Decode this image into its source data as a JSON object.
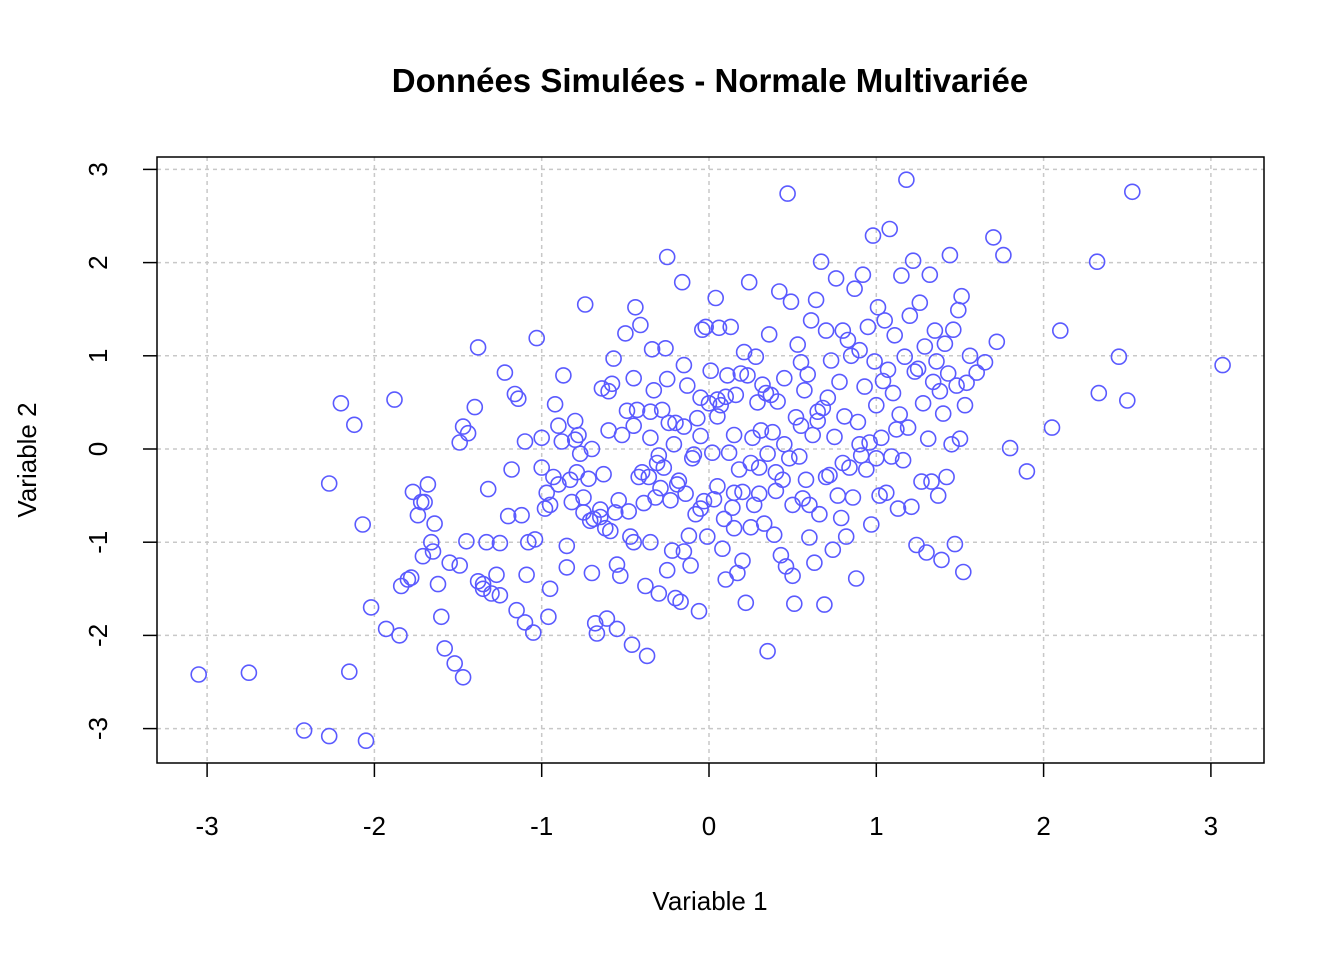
{
  "chart_data": {
    "type": "scatter",
    "title": "Données Simulées - Normale Multivariée",
    "xlabel": "Variable 1",
    "ylabel": "Variable 2",
    "xlim": [
      -3.3,
      3.3
    ],
    "ylim": [
      -3.35,
      3.15
    ],
    "xticks": [
      -3,
      -2,
      -1,
      0,
      1,
      2,
      3
    ],
    "yticks": [
      -3,
      -2,
      -1,
      0,
      1,
      2,
      3
    ],
    "xtick_labels": [
      "-3",
      "-2",
      "-1",
      "0",
      "1",
      "2",
      "3"
    ],
    "ytick_labels": [
      "-3",
      "-2",
      "-1",
      "0",
      "1",
      "2",
      "3"
    ],
    "grid": true,
    "marker": "open-circle",
    "colors": {
      "points": "#5a5aff",
      "grid": "#c8c8c8",
      "axis": "#000000"
    },
    "points": [
      [
        -3.05,
        -2.42
      ],
      [
        -2.75,
        -2.4
      ],
      [
        -2.42,
        -3.02
      ],
      [
        -2.27,
        -3.08
      ],
      [
        -2.05,
        -3.13
      ],
      [
        -2.15,
        -2.39
      ],
      [
        -2.27,
        -0.37
      ],
      [
        -2.2,
        0.49
      ],
      [
        -2.12,
        0.26
      ],
      [
        -2.07,
        -0.81
      ],
      [
        -2.02,
        -1.7
      ],
      [
        -1.93,
        -1.93
      ],
      [
        -1.88,
        0.53
      ],
      [
        -1.85,
        -2.0
      ],
      [
        -1.84,
        -1.47
      ],
      [
        -1.78,
        -1.38
      ],
      [
        -1.77,
        -0.46
      ],
      [
        -1.74,
        -0.71
      ],
      [
        -1.72,
        -0.57
      ],
      [
        -1.71,
        -1.15
      ],
      [
        -1.7,
        -0.57
      ],
      [
        -1.68,
        -0.38
      ],
      [
        -1.66,
        -1.0
      ],
      [
        -1.64,
        -0.8
      ],
      [
        -1.62,
        -1.45
      ],
      [
        -1.6,
        -1.8
      ],
      [
        -1.58,
        -2.14
      ],
      [
        -1.55,
        -1.22
      ],
      [
        -1.52,
        -2.3
      ],
      [
        -1.49,
        -1.25
      ],
      [
        -1.47,
        -2.45
      ],
      [
        -1.49,
        0.07
      ],
      [
        -1.47,
        0.24
      ],
      [
        -1.44,
        0.17
      ],
      [
        -1.4,
        0.45
      ],
      [
        -1.38,
        1.09
      ],
      [
        -1.38,
        -1.42
      ],
      [
        -1.35,
        -1.5
      ],
      [
        -1.33,
        -1.0
      ],
      [
        -1.32,
        -0.43
      ],
      [
        -1.3,
        -1.55
      ],
      [
        -1.27,
        -1.35
      ],
      [
        -1.25,
        -1.01
      ],
      [
        -1.22,
        0.82
      ],
      [
        -1.2,
        -0.72
      ],
      [
        -1.18,
        -0.22
      ],
      [
        -1.16,
        0.59
      ],
      [
        -1.14,
        0.54
      ],
      [
        -1.12,
        -0.71
      ],
      [
        -1.1,
        -1.86
      ],
      [
        -1.09,
        -1.35
      ],
      [
        -1.08,
        -1.0
      ],
      [
        -1.05,
        -1.97
      ],
      [
        -1.04,
        -0.97
      ],
      [
        -1.03,
        1.19
      ],
      [
        -1.0,
        0.12
      ],
      [
        -0.98,
        -0.64
      ],
      [
        -0.97,
        -0.47
      ],
      [
        -0.96,
        -1.8
      ],
      [
        -0.95,
        -1.5
      ],
      [
        -0.93,
        -0.3
      ],
      [
        -0.92,
        0.48
      ],
      [
        -0.9,
        -0.38
      ],
      [
        -0.88,
        0.08
      ],
      [
        -0.87,
        0.79
      ],
      [
        -0.85,
        -1.27
      ],
      [
        -0.83,
        -0.33
      ],
      [
        -0.82,
        -0.57
      ],
      [
        -0.8,
        0.1
      ],
      [
        -0.79,
        -0.25
      ],
      [
        -0.78,
        0.15
      ],
      [
        -0.77,
        -0.05
      ],
      [
        -0.75,
        -0.52
      ],
      [
        -0.74,
        1.55
      ],
      [
        -0.72,
        -0.32
      ],
      [
        -0.71,
        -0.77
      ],
      [
        -0.7,
        -1.33
      ],
      [
        -0.69,
        -0.75
      ],
      [
        -0.68,
        -1.87
      ],
      [
        -0.67,
        -1.98
      ],
      [
        -0.65,
        -0.65
      ],
      [
        -0.64,
        0.65
      ],
      [
        -0.63,
        -0.27
      ],
      [
        -0.62,
        -0.85
      ],
      [
        -0.61,
        -1.82
      ],
      [
        -0.6,
        0.62
      ],
      [
        -0.59,
        -0.88
      ],
      [
        -0.58,
        0.7
      ],
      [
        -0.57,
        0.97
      ],
      [
        -0.56,
        -0.68
      ],
      [
        -0.55,
        -1.93
      ],
      [
        -0.54,
        -0.55
      ],
      [
        -0.53,
        -1.36
      ],
      [
        -0.52,
        0.15
      ],
      [
        -0.5,
        1.24
      ],
      [
        -0.49,
        0.41
      ],
      [
        -0.48,
        -0.67
      ],
      [
        -0.47,
        -0.94
      ],
      [
        -0.46,
        -2.1
      ],
      [
        -0.45,
        0.76
      ],
      [
        -0.44,
        1.52
      ],
      [
        -0.43,
        0.42
      ],
      [
        -0.42,
        -0.3
      ],
      [
        -0.41,
        1.33
      ],
      [
        -0.4,
        -0.25
      ],
      [
        -0.39,
        -0.58
      ],
      [
        -0.38,
        -1.47
      ],
      [
        -0.37,
        -2.22
      ],
      [
        -0.36,
        -0.3
      ],
      [
        -0.35,
        0.12
      ],
      [
        -0.34,
        1.07
      ],
      [
        -0.33,
        0.63
      ],
      [
        -0.32,
        -0.52
      ],
      [
        -0.31,
        -0.15
      ],
      [
        -0.3,
        -0.07
      ],
      [
        -0.29,
        -0.42
      ],
      [
        -0.28,
        0.42
      ],
      [
        -0.27,
        -0.2
      ],
      [
        -0.26,
        1.08
      ],
      [
        -0.25,
        2.06
      ],
      [
        -0.24,
        0.28
      ],
      [
        -0.23,
        -0.55
      ],
      [
        -0.22,
        -1.09
      ],
      [
        -0.21,
        0.05
      ],
      [
        -0.2,
        0.28
      ],
      [
        -0.19,
        -0.38
      ],
      [
        -0.18,
        -0.34
      ],
      [
        -0.17,
        -1.64
      ],
      [
        -0.16,
        1.79
      ],
      [
        -0.15,
        0.24
      ],
      [
        -0.14,
        -0.48
      ],
      [
        -0.13,
        0.68
      ],
      [
        -0.12,
        -0.93
      ],
      [
        -0.11,
        -1.25
      ],
      [
        -0.1,
        -0.1
      ],
      [
        -0.09,
        -0.06
      ],
      [
        -0.08,
        -0.7
      ],
      [
        -0.07,
        0.33
      ],
      [
        -0.06,
        -1.74
      ],
      [
        -0.05,
        0.14
      ],
      [
        -0.04,
        1.28
      ],
      [
        -0.03,
        -0.56
      ],
      [
        -0.02,
        1.31
      ],
      [
        -0.01,
        -0.94
      ],
      [
        0.0,
        0.49
      ],
      [
        0.01,
        0.84
      ],
      [
        0.02,
        -0.04
      ],
      [
        0.03,
        -0.54
      ],
      [
        0.04,
        1.62
      ],
      [
        0.05,
        0.53
      ],
      [
        0.06,
        1.3
      ],
      [
        0.07,
        0.47
      ],
      [
        0.08,
        -1.07
      ],
      [
        0.09,
        -0.75
      ],
      [
        0.1,
        0.56
      ],
      [
        0.11,
        0.79
      ],
      [
        0.12,
        -0.04
      ],
      [
        0.13,
        1.31
      ],
      [
        0.14,
        -0.63
      ],
      [
        0.15,
        -0.47
      ],
      [
        0.16,
        0.58
      ],
      [
        0.17,
        -1.33
      ],
      [
        0.18,
        -0.22
      ],
      [
        0.19,
        0.81
      ],
      [
        0.2,
        -0.46
      ],
      [
        0.21,
        1.04
      ],
      [
        0.22,
        -1.65
      ],
      [
        0.23,
        0.79
      ],
      [
        0.24,
        1.79
      ],
      [
        0.25,
        -0.84
      ],
      [
        0.26,
        0.12
      ],
      [
        0.27,
        -0.6
      ],
      [
        0.28,
        0.99
      ],
      [
        0.29,
        0.5
      ],
      [
        0.3,
        -0.48
      ],
      [
        0.31,
        0.2
      ],
      [
        0.32,
        0.69
      ],
      [
        0.33,
        -0.8
      ],
      [
        0.34,
        0.6
      ],
      [
        0.35,
        -2.17
      ],
      [
        0.36,
        1.23
      ],
      [
        0.37,
        0.58
      ],
      [
        0.38,
        0.18
      ],
      [
        0.39,
        -0.92
      ],
      [
        0.4,
        -0.45
      ],
      [
        0.41,
        0.51
      ],
      [
        0.42,
        1.69
      ],
      [
        0.43,
        -1.14
      ],
      [
        0.44,
        -0.33
      ],
      [
        0.45,
        0.76
      ],
      [
        0.46,
        -1.26
      ],
      [
        0.47,
        2.74
      ],
      [
        0.48,
        -0.1
      ],
      [
        0.49,
        1.58
      ],
      [
        0.5,
        -1.36
      ],
      [
        0.51,
        -1.66
      ],
      [
        0.52,
        0.34
      ],
      [
        0.53,
        1.12
      ],
      [
        0.54,
        -0.08
      ],
      [
        0.55,
        0.93
      ],
      [
        0.56,
        -0.53
      ],
      [
        0.57,
        0.63
      ],
      [
        0.58,
        -0.33
      ],
      [
        0.59,
        0.8
      ],
      [
        0.6,
        -0.6
      ],
      [
        0.61,
        1.38
      ],
      [
        0.62,
        0.15
      ],
      [
        0.63,
        -1.22
      ],
      [
        0.64,
        1.6
      ],
      [
        0.65,
        0.4
      ],
      [
        0.66,
        -0.7
      ],
      [
        0.67,
        2.01
      ],
      [
        0.68,
        0.44
      ],
      [
        0.69,
        -1.67
      ],
      [
        0.7,
        1.27
      ],
      [
        0.71,
        0.55
      ],
      [
        0.72,
        -0.28
      ],
      [
        0.73,
        0.95
      ],
      [
        0.74,
        -1.08
      ],
      [
        0.75,
        0.13
      ],
      [
        0.76,
        1.83
      ],
      [
        0.77,
        -0.5
      ],
      [
        0.78,
        0.72
      ],
      [
        0.79,
        -0.74
      ],
      [
        0.8,
        1.27
      ],
      [
        0.81,
        0.35
      ],
      [
        0.82,
        -0.94
      ],
      [
        0.83,
        1.17
      ],
      [
        0.84,
        -0.2
      ],
      [
        0.85,
        1.0
      ],
      [
        0.86,
        -0.52
      ],
      [
        0.87,
        1.72
      ],
      [
        0.88,
        -1.39
      ],
      [
        0.89,
        0.29
      ],
      [
        0.9,
        1.06
      ],
      [
        0.91,
        -0.07
      ],
      [
        0.92,
        1.87
      ],
      [
        0.93,
        0.67
      ],
      [
        0.94,
        -0.22
      ],
      [
        0.95,
        1.31
      ],
      [
        0.96,
        0.07
      ],
      [
        0.97,
        -0.81
      ],
      [
        0.98,
        2.29
      ],
      [
        0.99,
        0.94
      ],
      [
        1.0,
        0.47
      ],
      [
        1.01,
        1.52
      ],
      [
        1.02,
        -0.5
      ],
      [
        1.03,
        0.12
      ],
      [
        1.04,
        0.73
      ],
      [
        1.05,
        1.38
      ],
      [
        1.06,
        -0.47
      ],
      [
        1.07,
        0.85
      ],
      [
        1.08,
        2.36
      ],
      [
        1.09,
        -0.08
      ],
      [
        1.1,
        0.6
      ],
      [
        1.11,
        1.22
      ],
      [
        1.12,
        0.21
      ],
      [
        1.13,
        -0.64
      ],
      [
        1.14,
        0.37
      ],
      [
        1.15,
        1.86
      ],
      [
        1.16,
        -0.12
      ],
      [
        1.17,
        0.99
      ],
      [
        1.18,
        2.89
      ],
      [
        1.19,
        0.23
      ],
      [
        1.2,
        1.43
      ],
      [
        1.21,
        -0.62
      ],
      [
        1.22,
        2.02
      ],
      [
        1.23,
        0.83
      ],
      [
        1.24,
        -1.03
      ],
      [
        1.25,
        0.86
      ],
      [
        1.26,
        1.57
      ],
      [
        1.27,
        -0.35
      ],
      [
        1.28,
        0.49
      ],
      [
        1.29,
        1.1
      ],
      [
        1.3,
        -1.11
      ],
      [
        1.31,
        0.11
      ],
      [
        1.32,
        1.87
      ],
      [
        1.33,
        -0.35
      ],
      [
        1.34,
        0.72
      ],
      [
        1.35,
        1.27
      ],
      [
        1.36,
        0.94
      ],
      [
        1.37,
        -0.5
      ],
      [
        1.38,
        0.62
      ],
      [
        1.39,
        -1.19
      ],
      [
        1.4,
        0.38
      ],
      [
        1.41,
        1.13
      ],
      [
        1.42,
        -0.3
      ],
      [
        1.43,
        0.81
      ],
      [
        1.44,
        2.08
      ],
      [
        1.45,
        0.05
      ],
      [
        1.46,
        1.28
      ],
      [
        1.47,
        -1.02
      ],
      [
        1.48,
        0.68
      ],
      [
        1.49,
        1.49
      ],
      [
        1.5,
        0.11
      ],
      [
        1.51,
        1.64
      ],
      [
        1.52,
        -1.32
      ],
      [
        1.53,
        0.47
      ],
      [
        1.54,
        0.71
      ],
      [
        1.56,
        1.0
      ],
      [
        1.6,
        0.82
      ],
      [
        1.65,
        0.93
      ],
      [
        1.7,
        2.27
      ],
      [
        1.72,
        1.15
      ],
      [
        1.76,
        2.08
      ],
      [
        1.8,
        0.01
      ],
      [
        1.9,
        -0.24
      ],
      [
        2.05,
        0.23
      ],
      [
        2.1,
        1.27
      ],
      [
        2.32,
        2.01
      ],
      [
        2.33,
        0.6
      ],
      [
        2.45,
        0.99
      ],
      [
        2.5,
        0.52
      ],
      [
        2.53,
        2.76
      ],
      [
        3.07,
        0.9
      ],
      [
        -1.8,
        -1.4
      ],
      [
        -1.65,
        -1.1
      ],
      [
        -1.45,
        -0.99
      ],
      [
        -1.35,
        -1.45
      ],
      [
        -1.25,
        -1.57
      ],
      [
        -1.15,
        -1.73
      ],
      [
        -0.95,
        -0.6
      ],
      [
        -0.85,
        -1.04
      ],
      [
        -0.75,
        -0.68
      ],
      [
        -0.65,
        -0.73
      ],
      [
        -0.55,
        -1.24
      ],
      [
        -0.45,
        -1.0
      ],
      [
        -0.35,
        -1.0
      ],
      [
        -0.25,
        -1.3
      ],
      [
        -0.15,
        -1.1
      ],
      [
        -0.05,
        -0.64
      ],
      [
        0.05,
        -0.4
      ],
      [
        0.15,
        -0.85
      ],
      [
        0.25,
        -0.15
      ],
      [
        0.35,
        -0.05
      ],
      [
        0.45,
        0.05
      ],
      [
        0.55,
        0.25
      ],
      [
        0.65,
        0.3
      ],
      [
        -0.45,
        0.25
      ],
      [
        -0.35,
        0.4
      ],
      [
        -0.25,
        0.75
      ],
      [
        -0.15,
        0.9
      ],
      [
        -0.05,
        0.55
      ],
      [
        0.05,
        0.35
      ],
      [
        0.15,
        0.15
      ],
      [
        -0.6,
        0.2
      ],
      [
        -0.7,
        0.0
      ],
      [
        -0.8,
        0.3
      ],
      [
        -0.9,
        0.25
      ],
      [
        -1.0,
        -0.2
      ],
      [
        -1.1,
        0.08
      ],
      [
        0.5,
        -0.6
      ],
      [
        0.6,
        -0.95
      ],
      [
        0.7,
        -0.3
      ],
      [
        0.8,
        -0.15
      ],
      [
        0.9,
        0.05
      ],
      [
        1.0,
        -0.1
      ],
      [
        -0.2,
        -1.6
      ],
      [
        -0.3,
        -1.55
      ],
      [
        0.1,
        -1.4
      ],
      [
        0.2,
        -1.2
      ],
      [
        0.4,
        -0.25
      ],
      [
        0.3,
        -0.2
      ]
    ]
  }
}
